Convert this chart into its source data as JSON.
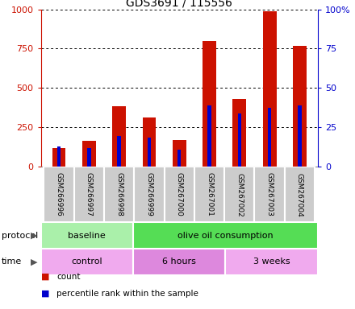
{
  "title": "GDS3691 / 115556",
  "samples": [
    "GSM266996",
    "GSM266997",
    "GSM266998",
    "GSM266999",
    "GSM267000",
    "GSM267001",
    "GSM267002",
    "GSM267003",
    "GSM267004"
  ],
  "count_values": [
    120,
    163,
    385,
    315,
    170,
    800,
    430,
    985,
    770
  ],
  "percentile_values": [
    130,
    120,
    195,
    185,
    110,
    390,
    340,
    375,
    390
  ],
  "protocol_groups": [
    {
      "label": "baseline",
      "start": 0,
      "end": 3,
      "color": "#aaf0aa"
    },
    {
      "label": "olive oil consumption",
      "start": 3,
      "end": 9,
      "color": "#55dd55"
    }
  ],
  "time_groups": [
    {
      "label": "control",
      "start": 0,
      "end": 3,
      "color": "#f0aaee"
    },
    {
      "label": "6 hours",
      "start": 3,
      "end": 6,
      "color": "#dd88dd"
    },
    {
      "label": "3 weeks",
      "start": 6,
      "end": 9,
      "color": "#f0aaee"
    }
  ],
  "bar_color": "#cc1100",
  "percentile_color": "#0000cc",
  "left_axis_color": "#cc1100",
  "right_axis_color": "#0000cc",
  "left_ylim": [
    0,
    1000
  ],
  "right_ylim": [
    0,
    100
  ],
  "left_yticks": [
    0,
    250,
    500,
    750,
    1000
  ],
  "right_yticks": [
    0,
    25,
    50,
    75,
    100
  ],
  "right_yticklabels": [
    "0",
    "25",
    "50",
    "75",
    "100%"
  ],
  "bar_width": 0.45,
  "blue_bar_width": 0.12,
  "legend_items": [
    {
      "label": "count",
      "color": "#cc1100"
    },
    {
      "label": "percentile rank within the sample",
      "color": "#0000cc"
    }
  ]
}
